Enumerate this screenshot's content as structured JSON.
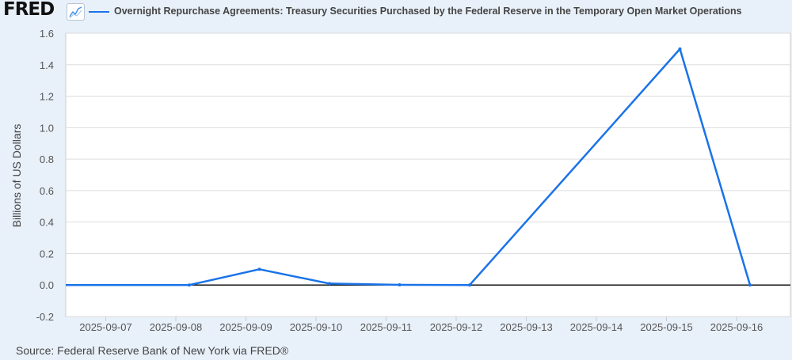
{
  "header": {
    "logo": "FRED",
    "logo_icon": "line-chart-icon"
  },
  "source": "Source: Federal Reserve Bank of New York via FRED®",
  "chart_data": {
    "type": "line",
    "title": "",
    "xlabel": "",
    "ylabel": "Billions of US Dollars",
    "ylim": [
      -0.2,
      1.6
    ],
    "yticks": [
      "1.6",
      "1.4",
      "1.2",
      "1.0",
      "0.8",
      "0.6",
      "0.4",
      "0.2",
      "0.0",
      "-0.2"
    ],
    "xticks": [
      "2025-09-07",
      "2025-09-08",
      "2025-09-09",
      "2025-09-10",
      "2025-09-11",
      "2025-09-12",
      "2025-09-13",
      "2025-09-14",
      "2025-09-15",
      "2025-09-16"
    ],
    "grid": true,
    "legend": "top",
    "series": [
      {
        "name": "Overnight Repurchase Agreements: Treasury Securities Purchased by the Federal Reserve in the Temporary Open Market Operations",
        "color": "#1a73e8",
        "points": [
          {
            "x": "2025-09-05",
            "y": 0.0
          },
          {
            "x": "2025-09-08",
            "y": 0.0
          },
          {
            "x": "2025-09-09",
            "y": 0.1
          },
          {
            "x": "2025-09-10",
            "y": 0.009
          },
          {
            "x": "2025-09-11",
            "y": 0.001
          },
          {
            "x": "2025-09-12",
            "y": 0.0
          },
          {
            "x": "2025-09-15",
            "y": 1.5
          },
          {
            "x": "2025-09-16",
            "y": 0.0
          }
        ]
      }
    ]
  }
}
